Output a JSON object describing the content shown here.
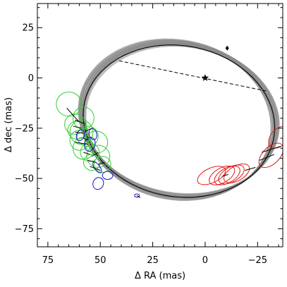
{
  "chart_data": {
    "type": "scatter",
    "xlabel": "Δ RA (mas)",
    "ylabel": "Δ dec (mas)",
    "xlim": [
      80,
      -37
    ],
    "ylim": [
      -84,
      37
    ],
    "x_reversed": true,
    "xticks": [
      75,
      50,
      25,
      0,
      -25
    ],
    "xtick_labels": [
      "75",
      "50",
      "25",
      "0",
      "−25"
    ],
    "yticks": [
      25,
      0,
      -25,
      -50,
      -75
    ],
    "ytick_labels": [
      "25",
      "0",
      "−25",
      "−50",
      "−75"
    ],
    "minor_tick_step": 5,
    "grid": false,
    "legend": "none",
    "colors": {
      "axes": "#000000",
      "orbit_fit": "#000000",
      "orbit_samples": "#8c8c8c",
      "group_green": "#32cd32",
      "group_blue": "#1414c8",
      "group_red": "#e01a1a"
    },
    "best_fit_orbit": {
      "center": [
        12.5,
        -21.5
      ],
      "semi_major": 46,
      "semi_minor": 37.5,
      "rotation_deg": 12
    },
    "orbit_band": {
      "center": [
        12.7,
        -20.8
      ],
      "semi_major": 46.5,
      "semi_minor": 38,
      "rotation_deg": 13,
      "thickness": 4
    },
    "primary_star": {
      "x": 0,
      "y": 0,
      "marker": "star"
    },
    "node_line": {
      "from": [
        41,
        8.5
      ],
      "to": [
        -29,
        -6.5
      ],
      "style": "dashed"
    },
    "periastron_marker": {
      "x": -10.5,
      "y": 14.8,
      "marker": "diamond"
    },
    "series": [
      {
        "color": "green",
        "points": [
          {
            "x": 65,
            "y": -13,
            "rx": 6,
            "ry": 6
          },
          {
            "x": 58,
            "y": -20,
            "rx": 5,
            "ry": 5.5
          },
          {
            "x": 62,
            "y": -23,
            "rx": 5,
            "ry": 5
          },
          {
            "x": 59,
            "y": -27,
            "rx": 5.5,
            "ry": 6
          },
          {
            "x": 61,
            "y": -26,
            "rx": 4.5,
            "ry": 4.5
          },
          {
            "x": 56,
            "y": -29,
            "rx": 5,
            "ry": 5
          },
          {
            "x": 60,
            "y": -31,
            "rx": 4.5,
            "ry": 5
          },
          {
            "x": 52,
            "y": -32,
            "rx": 5.5,
            "ry": 5.5
          },
          {
            "x": 58,
            "y": -35,
            "rx": 5,
            "ry": 5.5
          },
          {
            "x": 55,
            "y": -37,
            "rx": 4.5,
            "ry": 4.5
          },
          {
            "x": 51,
            "y": -39,
            "rx": 5.5,
            "ry": 5.5
          },
          {
            "x": 54,
            "y": -42,
            "rx": 4,
            "ry": 4
          },
          {
            "x": 49,
            "y": -43,
            "rx": 4,
            "ry": 4
          }
        ]
      },
      {
        "color": "blue",
        "points": [
          {
            "x": 59.5,
            "y": -28.5,
            "rx": 1.8,
            "ry": 2.8,
            "rot": 20
          },
          {
            "x": 53.5,
            "y": -28,
            "rx": 1.8,
            "ry": 2.8,
            "rot": -15
          },
          {
            "x": 55,
            "y": -33,
            "rx": 2.5,
            "ry": 3.5,
            "rot": 15
          },
          {
            "x": 51.5,
            "y": -44.5,
            "rx": 1.3,
            "ry": 3.2,
            "rot": -35
          },
          {
            "x": 46.5,
            "y": -48.5,
            "rx": 2.5,
            "ry": 2,
            "rot": 0
          },
          {
            "x": 51,
            "y": -52.5,
            "rx": 2.5,
            "ry": 3,
            "rot": 20
          },
          {
            "x": 32.5,
            "y": -58.5,
            "rx": 1.2,
            "ry": 0.8,
            "rot": 0
          }
        ]
      },
      {
        "color": "red",
        "points": [
          {
            "x": -35.5,
            "y": -29.5,
            "rx": 4,
            "ry": 6.5,
            "rot": 45
          },
          {
            "x": -31.5,
            "y": -38.5,
            "rx": 4,
            "ry": 7.5,
            "rot": 45
          },
          {
            "x": -15,
            "y": -47.5,
            "rx": 3.5,
            "ry": 7,
            "rot": 60
          },
          {
            "x": -12.5,
            "y": -48,
            "rx": 3.5,
            "ry": 7,
            "rot": 60
          },
          {
            "x": -10.5,
            "y": -48.5,
            "rx": 3.5,
            "ry": 7,
            "rot": 60
          },
          {
            "x": -8,
            "y": -48.5,
            "rx": 3.5,
            "ry": 7,
            "rot": 60
          },
          {
            "x": -3,
            "y": -48.5,
            "rx": 3.5,
            "ry": 7.5,
            "rot": 65
          }
        ]
      }
    ],
    "residual_lines": [
      {
        "from": [
          66,
          -15
        ],
        "to": [
          60,
          -22
        ]
      },
      {
        "from": [
          62,
          -21
        ],
        "to": [
          57,
          -23
        ]
      },
      {
        "from": [
          63,
          -24
        ],
        "to": [
          59,
          -25
        ]
      },
      {
        "from": [
          62,
          -27
        ],
        "to": [
          58,
          -27.5
        ]
      },
      {
        "from": [
          54,
          -25
        ],
        "to": [
          57,
          -26.5
        ]
      },
      {
        "from": [
          58,
          -30
        ],
        "to": [
          56,
          -31
        ]
      },
      {
        "from": [
          62,
          -32
        ],
        "to": [
          56,
          -33
        ]
      },
      {
        "from": [
          58,
          -37
        ],
        "to": [
          55,
          -38
        ]
      },
      {
        "from": [
          51,
          -37
        ],
        "to": [
          54,
          -39
        ]
      },
      {
        "from": [
          56,
          -41
        ],
        "to": [
          52,
          -42
        ]
      },
      {
        "from": [
          48,
          -42
        ],
        "to": [
          51,
          -43
        ]
      },
      {
        "from": [
          55,
          -44
        ],
        "to": [
          50,
          -46
        ]
      },
      {
        "from": [
          32.5,
          -58.5
        ],
        "to": [
          31,
          -59.5
        ]
      },
      {
        "from": [
          -36,
          -34
        ],
        "to": [
          -27,
          -37
        ]
      },
      {
        "from": [
          -33,
          -38
        ],
        "to": [
          -26,
          -41
        ]
      },
      {
        "from": [
          -24,
          -44.5
        ],
        "to": [
          -19,
          -46
        ]
      },
      {
        "from": [
          -11,
          -48
        ],
        "to": [
          -8,
          -49
        ]
      }
    ]
  }
}
